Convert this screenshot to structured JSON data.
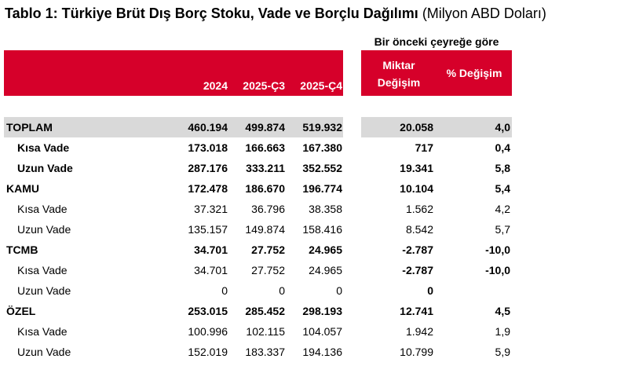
{
  "title": {
    "main": "Tablo 1: Türkiye Brüt Dış Borç Stoku, Vade ve Borçlu Dağılımı",
    "unit": "(Milyon ABD Doları)"
  },
  "table": {
    "group_header": "Bir önceki çeyreğe göre",
    "columns": [
      "2024",
      "2025-Ç3",
      "2025-Ç4",
      "Miktar Değişim",
      "% Değişim"
    ],
    "rows": [
      [
        "TOPLAM",
        "460.194",
        "499.874",
        "519.932",
        "20.058",
        "4,0"
      ],
      [
        "Kısa Vade",
        "173.018",
        "166.663",
        "167.380",
        "717",
        "0,4"
      ],
      [
        "Uzun Vade",
        "287.176",
        "333.211",
        "352.552",
        "19.341",
        "5,8"
      ],
      [
        "KAMU",
        "172.478",
        "186.670",
        "196.774",
        "10.104",
        "5,4"
      ],
      [
        "Kısa Vade",
        "37.321",
        "36.796",
        "38.358",
        "1.562",
        "4,2"
      ],
      [
        "Uzun Vade",
        "135.157",
        "149.874",
        "158.416",
        "8.542",
        "5,7"
      ],
      [
        "TCMB",
        "34.701",
        "27.752",
        "24.965",
        "-2.787",
        "-10,0"
      ],
      [
        "Kısa Vade",
        "34.701",
        "27.752",
        "24.965",
        "-2.787",
        "-10,0"
      ],
      [
        "Uzun Vade",
        "0",
        "0",
        "0",
        "0"
      ],
      [
        "ÖZEL",
        "253.015",
        "285.452",
        "298.193",
        "12.741",
        "4,5"
      ],
      [
        "Kısa Vade",
        "100.996",
        "102.115",
        "104.057",
        "1.942",
        "1,9"
      ],
      [
        "Uzun Vade",
        "152.019",
        "183.337",
        "194.136",
        "10.799",
        "5,9"
      ]
    ]
  }
}
